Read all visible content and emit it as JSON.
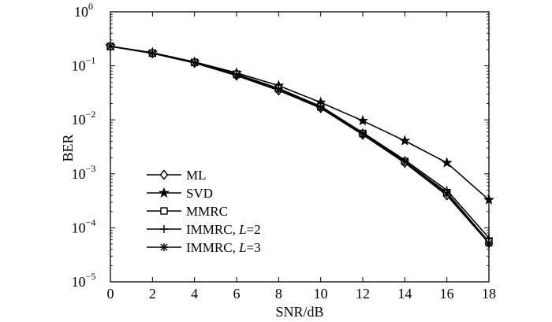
{
  "chart_data": {
    "type": "line",
    "title": "",
    "xlabel": "SNR/dB",
    "ylabel": "BER",
    "x": [
      0,
      2,
      4,
      6,
      8,
      10,
      12,
      14,
      16,
      18
    ],
    "xlim": [
      0,
      18
    ],
    "ylim": [
      1e-05,
      1
    ],
    "yscale": "log",
    "grid": false,
    "legend_position": "bottom-left",
    "x_ticks": [
      "0",
      "2",
      "4",
      "6",
      "8",
      "10",
      "12",
      "14",
      "16",
      "18"
    ],
    "y_ticks": [
      {
        "base": "10",
        "exp": "0",
        "value": 1
      },
      {
        "base": "10",
        "exp": "−1",
        "value": 0.1
      },
      {
        "base": "10",
        "exp": "−2",
        "value": 0.01
      },
      {
        "base": "10",
        "exp": "−3",
        "value": 0.001
      },
      {
        "base": "10",
        "exp": "−4",
        "value": 0.0001
      },
      {
        "base": "10",
        "exp": "−5",
        "value": 1e-05
      }
    ],
    "series": [
      {
        "name": "ML",
        "legend_text": "ML",
        "legend_param": "",
        "legend_value": "",
        "marker": "diamond",
        "values": [
          0.23,
          0.17,
          0.113,
          0.066,
          0.035,
          0.0165,
          0.0053,
          0.0016,
          0.0004,
          5.2e-05
        ]
      },
      {
        "name": "SVD",
        "legend_text": "SVD",
        "legend_param": "",
        "legend_value": "",
        "marker": "star",
        "values": [
          0.23,
          0.175,
          0.118,
          0.074,
          0.043,
          0.021,
          0.0096,
          0.0041,
          0.0016,
          0.00033
        ]
      },
      {
        "name": "MMRC",
        "legend_text": "MMRC",
        "legend_param": "",
        "legend_value": "",
        "marker": "square",
        "values": [
          0.23,
          0.172,
          0.116,
          0.07,
          0.038,
          0.0175,
          0.0056,
          0.0017,
          0.00045,
          5.5e-05
        ]
      },
      {
        "name": "IMMRC, L=2",
        "legend_text": "IMMRC, ",
        "legend_param": "L",
        "legend_value": "=2",
        "marker": "plus",
        "values": [
          0.23,
          0.172,
          0.116,
          0.07,
          0.038,
          0.0178,
          0.0058,
          0.0018,
          0.0005,
          6.5e-05
        ]
      },
      {
        "name": "IMMRC, L=3",
        "legend_text": "IMMRC, ",
        "legend_param": "L",
        "legend_value": "=3",
        "marker": "asterisk",
        "values": [
          0.23,
          0.171,
          0.115,
          0.068,
          0.037,
          0.017,
          0.0055,
          0.0017,
          0.00043,
          5.2e-05
        ]
      }
    ]
  }
}
